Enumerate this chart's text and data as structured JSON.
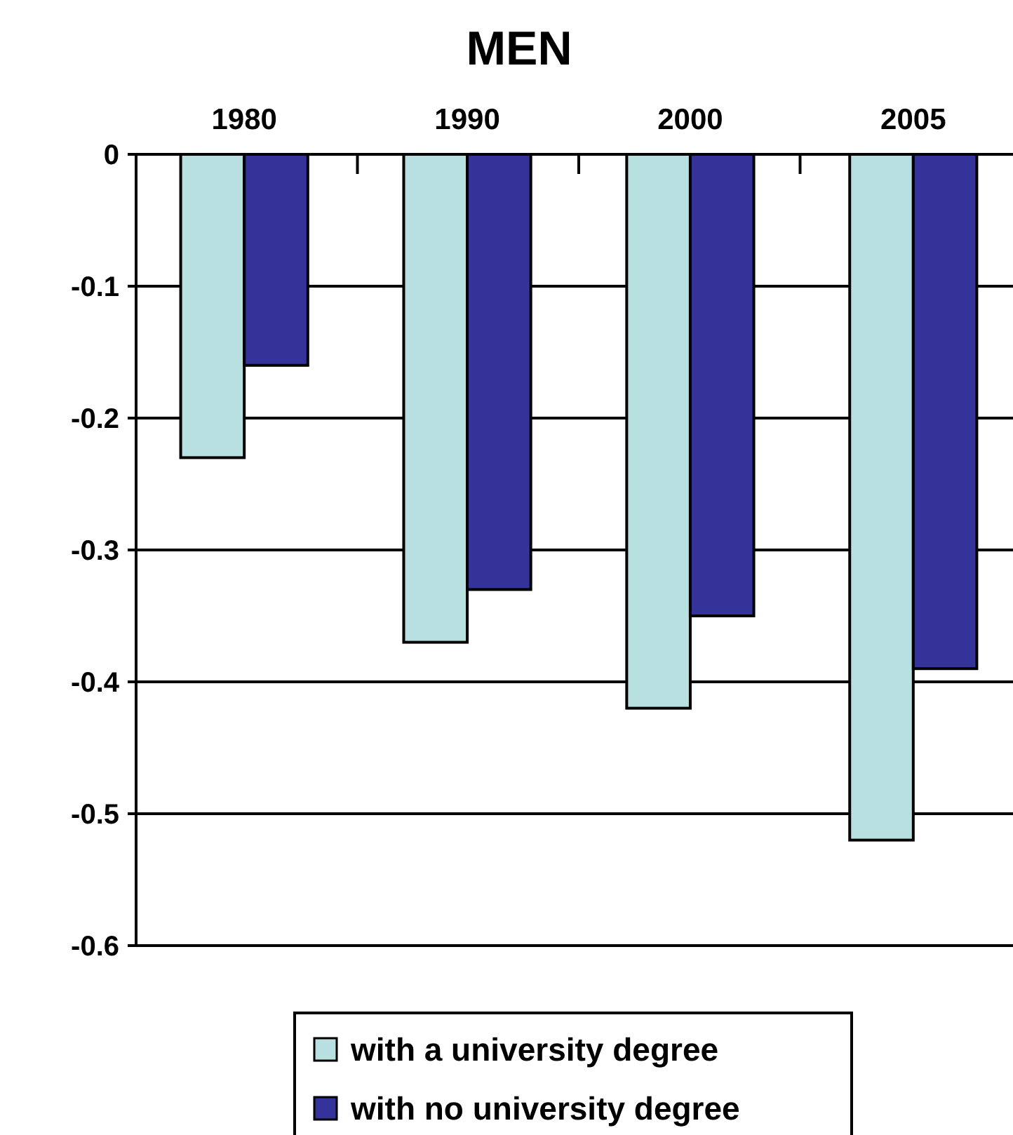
{
  "chart_data": {
    "type": "bar",
    "title": "MEN",
    "categories": [
      "1980",
      "1990",
      "2000",
      "2005"
    ],
    "series": [
      {
        "name": "with a university degree",
        "color": "#b8e0e0",
        "values": [
          -0.23,
          -0.37,
          -0.42,
          -0.52
        ]
      },
      {
        "name": "with no university degree",
        "color": "#333399",
        "values": [
          -0.16,
          -0.33,
          -0.35,
          -0.39
        ]
      }
    ],
    "ylim": [
      -0.6,
      0
    ],
    "yticks": [
      0,
      -0.1,
      -0.2,
      -0.3,
      -0.4,
      -0.5,
      -0.6
    ],
    "grid": "y",
    "legend": "bottom"
  }
}
